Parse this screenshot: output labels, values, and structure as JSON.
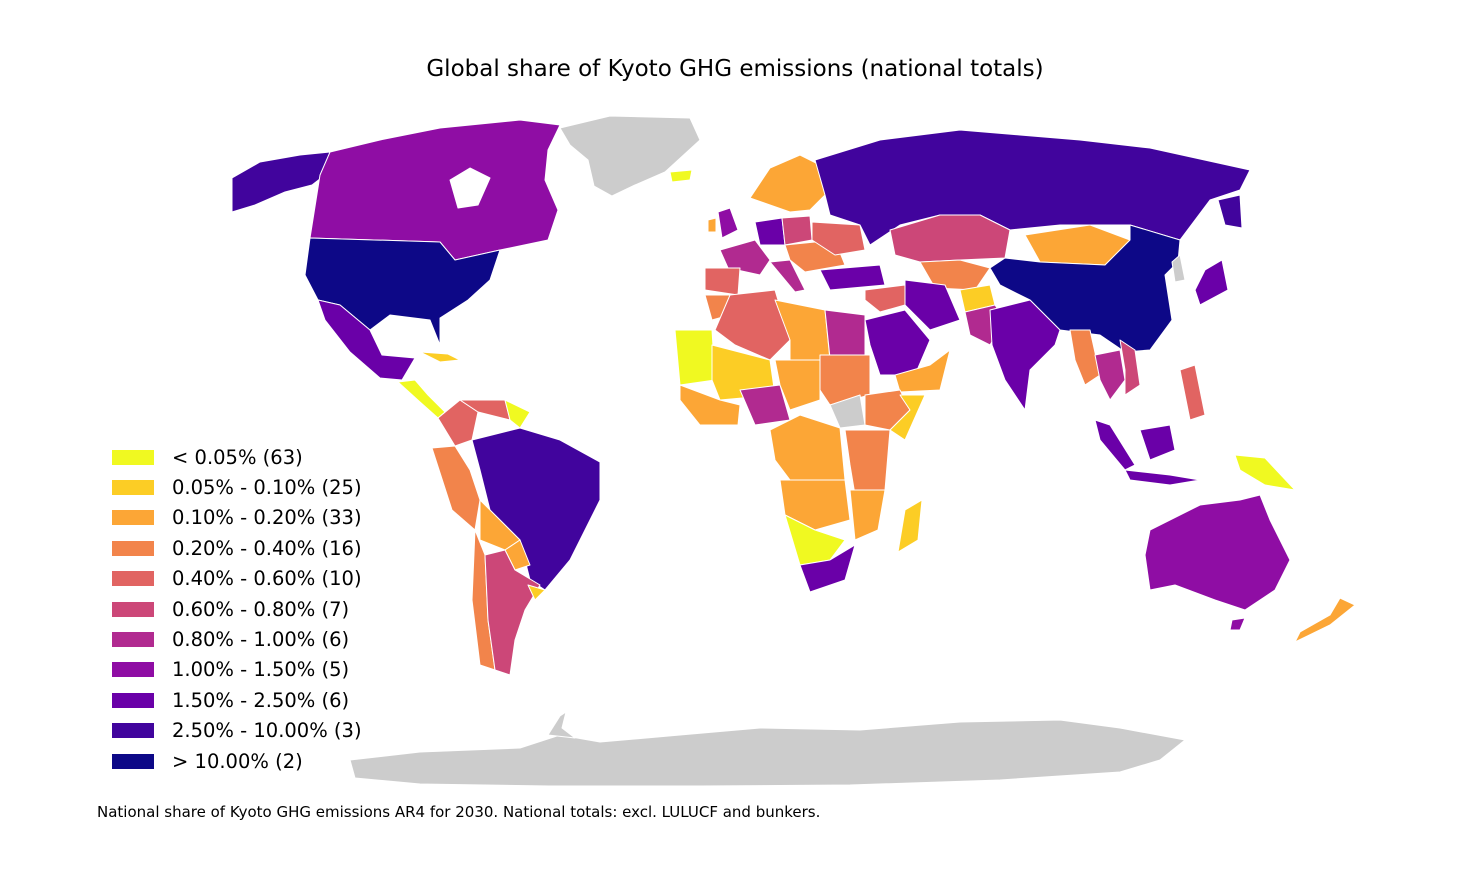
{
  "title": "Global share of Kyoto GHG emissions (national totals)",
  "footnote": "National share of Kyoto GHG emissions AR4 for 2030. National totals: excl. LULUCF and bunkers.",
  "no_data_color": "#cccccc",
  "legend": [
    {
      "label": "< 0.05% (63)",
      "color": "#f0f921"
    },
    {
      "label": "0.05% - 0.10% (25)",
      "color": "#fccd25"
    },
    {
      "label": "0.10% - 0.20% (33)",
      "color": "#fca636"
    },
    {
      "label": "0.20% - 0.40% (16)",
      "color": "#f2844b"
    },
    {
      "label": "0.40% - 0.60% (10)",
      "color": "#e16462"
    },
    {
      "label": "0.60% - 0.80% (7)",
      "color": "#cc4778"
    },
    {
      "label": "0.80% - 1.00% (6)",
      "color": "#b12a90"
    },
    {
      "label": "1.00% - 1.50% (5)",
      "color": "#8f0da4"
    },
    {
      "label": "1.50% - 2.50% (6)",
      "color": "#6a00a8"
    },
    {
      "label": "2.50% - 10.00% (3)",
      "color": "#41049d"
    },
    {
      "label": "> 10.00% (2)",
      "color": "#0d0887"
    }
  ]
}
